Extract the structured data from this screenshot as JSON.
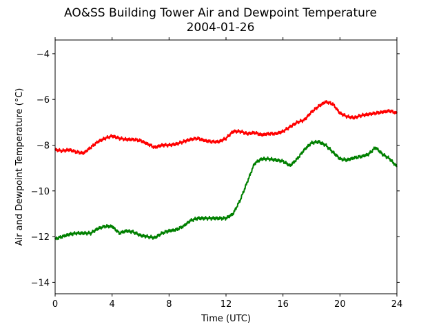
{
  "chart_data": {
    "type": "line",
    "title": "AO&SS Building Tower Air and Dewpoint Temperature",
    "subtitle": "2004-01-26",
    "xlabel": "Time (UTC)",
    "ylabel": "Air and Dewpoint Temperature (°C)",
    "xlim": [
      0,
      24
    ],
    "ylim": [
      -14.5,
      -3.4
    ],
    "xticks": [
      0,
      4,
      8,
      12,
      16,
      20,
      24
    ],
    "xtick_labels": [
      "0",
      "4",
      "8",
      "12",
      "16",
      "20",
      "24"
    ],
    "yticks": [
      -14,
      -12,
      -10,
      -8,
      -6,
      -4
    ],
    "ytick_labels": [
      "−14",
      "−12",
      "−10",
      "−8",
      "−6",
      "−4"
    ],
    "grid": false,
    "series": [
      {
        "color": "#ff0000",
        "x": [
          0,
          0.5,
          1,
          1.5,
          2,
          2.5,
          3,
          3.5,
          4,
          4.5,
          5,
          5.5,
          6,
          6.5,
          7,
          7.5,
          8,
          8.5,
          9,
          9.5,
          10,
          10.5,
          11,
          11.5,
          12,
          12.5,
          13,
          13.5,
          14,
          14.5,
          15,
          15.5,
          16,
          16.5,
          17,
          17.5,
          18,
          18.5,
          19,
          19.5,
          20,
          20.5,
          21,
          21.5,
          22,
          22.5,
          23,
          23.5,
          24
        ],
        "y": [
          -8.2,
          -8.25,
          -8.2,
          -8.3,
          -8.35,
          -8.1,
          -7.85,
          -7.7,
          -7.6,
          -7.7,
          -7.75,
          -7.75,
          -7.8,
          -7.95,
          -8.1,
          -8.0,
          -8.0,
          -7.95,
          -7.85,
          -7.75,
          -7.7,
          -7.8,
          -7.85,
          -7.85,
          -7.7,
          -7.4,
          -7.4,
          -7.5,
          -7.45,
          -7.55,
          -7.5,
          -7.5,
          -7.4,
          -7.2,
          -7.0,
          -6.9,
          -6.55,
          -6.3,
          -6.1,
          -6.2,
          -6.6,
          -6.75,
          -6.8,
          -6.7,
          -6.65,
          -6.6,
          -6.55,
          -6.5,
          -6.6
        ]
      },
      {
        "color": "#008000",
        "x": [
          0,
          0.5,
          1,
          1.5,
          2,
          2.5,
          3,
          3.5,
          4,
          4.5,
          5,
          5.5,
          6,
          6.5,
          7,
          7.5,
          8,
          8.5,
          9,
          9.5,
          10,
          10.5,
          11,
          11.5,
          12,
          12.5,
          13,
          13.5,
          14,
          14.5,
          15,
          15.5,
          16,
          16.5,
          17,
          17.5,
          18,
          18.5,
          19,
          19.5,
          20,
          20.5,
          21,
          21.5,
          22,
          22.5,
          23,
          23.5,
          24
        ],
        "y": [
          -12.1,
          -12.0,
          -11.9,
          -11.85,
          -11.85,
          -11.85,
          -11.65,
          -11.55,
          -11.55,
          -11.85,
          -11.75,
          -11.8,
          -11.95,
          -12.0,
          -12.05,
          -11.85,
          -11.75,
          -11.7,
          -11.55,
          -11.3,
          -11.2,
          -11.2,
          -11.2,
          -11.2,
          -11.2,
          -11.0,
          -10.4,
          -9.6,
          -8.8,
          -8.6,
          -8.6,
          -8.65,
          -8.7,
          -8.9,
          -8.6,
          -8.2,
          -7.9,
          -7.85,
          -8.0,
          -8.3,
          -8.6,
          -8.65,
          -8.55,
          -8.5,
          -8.4,
          -8.1,
          -8.4,
          -8.6,
          -8.95
        ]
      }
    ]
  }
}
